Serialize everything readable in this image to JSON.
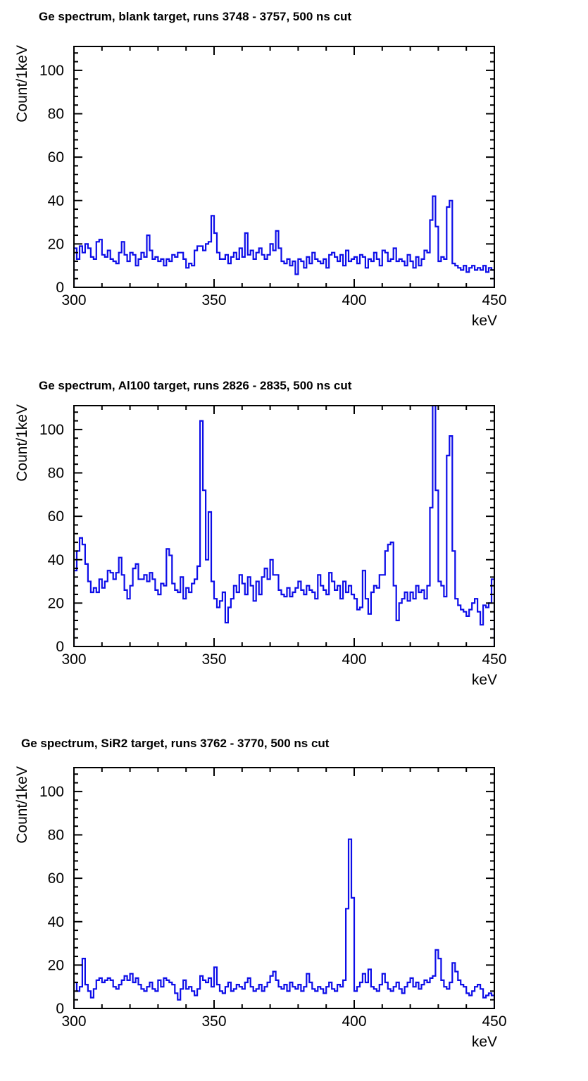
{
  "page": {
    "background": "#ffffff",
    "text_color": "#000000"
  },
  "colors": {
    "histogram_line": "#0d0de8",
    "axis": "#000000"
  },
  "chart_data": [
    {
      "type": "bar",
      "subtype": "step-histogram",
      "title": "Ge spectrum, blank target, runs 3748 - 3757, 500 ns cut",
      "xlabel": "keV",
      "ylabel": "Count/1keV",
      "x_start": 300,
      "bin_width_keV": 1,
      "xlim": [
        300,
        450
      ],
      "ylim": [
        0,
        111
      ],
      "x_major_ticks": [
        300,
        350,
        400,
        450
      ],
      "x_minor_step": 10,
      "y_major_ticks": [
        0,
        20,
        40,
        60,
        80,
        100
      ],
      "y_minor_step": 4,
      "grid": "off",
      "legend": "none",
      "values": [
        18,
        13,
        19,
        16,
        20,
        18,
        14,
        13,
        21,
        22,
        15,
        14,
        17,
        13,
        12,
        11,
        16,
        21,
        15,
        12,
        16,
        15,
        10,
        13,
        16,
        14,
        24,
        17,
        13,
        14,
        12,
        13,
        10,
        13,
        12,
        15,
        14,
        16,
        16,
        13,
        9,
        11,
        10,
        17,
        19,
        19,
        17,
        20,
        21,
        33,
        25,
        16,
        13,
        13,
        15,
        11,
        14,
        16,
        13,
        18,
        14,
        25,
        15,
        17,
        13,
        16,
        18,
        15,
        13,
        15,
        20,
        17,
        26,
        18,
        12,
        11,
        13,
        10,
        12,
        6,
        13,
        12,
        9,
        14,
        11,
        16,
        13,
        12,
        11,
        13,
        9,
        15,
        16,
        14,
        12,
        15,
        10,
        17,
        12,
        13,
        14,
        11,
        15,
        14,
        9,
        13,
        12,
        16,
        13,
        10,
        17,
        16,
        12,
        13,
        18,
        12,
        13,
        12,
        10,
        15,
        12,
        9,
        14,
        10,
        13,
        17,
        16,
        31,
        42,
        28,
        12,
        14,
        13,
        37,
        40,
        11,
        10,
        9,
        8,
        10,
        7,
        9,
        10,
        8,
        9,
        8,
        10,
        7,
        9,
        8
      ]
    },
    {
      "type": "bar",
      "subtype": "step-histogram",
      "title": "Ge spectrum, Al100 target, runs 2826 - 2835, 500 ns cut",
      "xlabel": "keV",
      "ylabel": "Count/1keV",
      "x_start": 300,
      "bin_width_keV": 1,
      "xlim": [
        300,
        450
      ],
      "ylim": [
        0,
        111
      ],
      "x_major_ticks": [
        300,
        350,
        400,
        450
      ],
      "x_minor_step": 10,
      "y_major_ticks": [
        0,
        20,
        40,
        60,
        80,
        100
      ],
      "y_minor_step": 4,
      "grid": "off",
      "legend": "none",
      "clipped_bin_keV": 428,
      "values": [
        35,
        44,
        50,
        47,
        38,
        30,
        25,
        27,
        25,
        31,
        27,
        30,
        35,
        34,
        31,
        34,
        41,
        33,
        26,
        22,
        28,
        36,
        38,
        31,
        31,
        33,
        30,
        34,
        31,
        26,
        24,
        29,
        28,
        45,
        42,
        29,
        26,
        25,
        32,
        22,
        27,
        25,
        29,
        31,
        37,
        104,
        72,
        40,
        62,
        30,
        22,
        18,
        21,
        25,
        11,
        18,
        22,
        28,
        25,
        33,
        29,
        24,
        32,
        28,
        21,
        30,
        24,
        32,
        36,
        31,
        40,
        33,
        33,
        26,
        24,
        23,
        27,
        23,
        25,
        27,
        30,
        26,
        24,
        28,
        26,
        25,
        22,
        33,
        28,
        26,
        24,
        34,
        30,
        26,
        28,
        22,
        30,
        25,
        28,
        24,
        22,
        17,
        18,
        35,
        22,
        15,
        25,
        28,
        27,
        33,
        33,
        44,
        47,
        48,
        28,
        12,
        20,
        22,
        25,
        21,
        25,
        22,
        28,
        25,
        26,
        22,
        28,
        64,
        112,
        72,
        30,
        28,
        23,
        88,
        97,
        44,
        22,
        19,
        17,
        16,
        14,
        17,
        20,
        22,
        16,
        10,
        19,
        18,
        20,
        31
      ]
    },
    {
      "type": "bar",
      "subtype": "step-histogram",
      "title": "Ge spectrum, SiR2 target, runs 3762 - 3770, 500 ns cut",
      "xlabel": "keV",
      "ylabel": "Count/1keV",
      "x_start": 300,
      "bin_width_keV": 1,
      "xlim": [
        300,
        450
      ],
      "ylim": [
        0,
        111
      ],
      "x_major_ticks": [
        300,
        350,
        400,
        450
      ],
      "x_minor_step": 10,
      "y_major_ticks": [
        0,
        20,
        40,
        60,
        80,
        100
      ],
      "y_minor_step": 4,
      "grid": "off",
      "legend": "none",
      "values": [
        12,
        8,
        10,
        23,
        11,
        8,
        5,
        9,
        13,
        14,
        12,
        13,
        14,
        13,
        10,
        9,
        11,
        13,
        15,
        13,
        16,
        12,
        14,
        11,
        9,
        8,
        10,
        12,
        9,
        8,
        13,
        10,
        14,
        13,
        12,
        11,
        7,
        4,
        9,
        13,
        9,
        10,
        8,
        6,
        9,
        15,
        13,
        12,
        14,
        10,
        19,
        11,
        8,
        7,
        10,
        12,
        8,
        9,
        11,
        10,
        9,
        12,
        14,
        10,
        8,
        9,
        11,
        8,
        10,
        12,
        15,
        17,
        13,
        10,
        9,
        11,
        8,
        12,
        10,
        9,
        11,
        8,
        10,
        16,
        12,
        9,
        8,
        10,
        9,
        7,
        10,
        12,
        9,
        8,
        11,
        10,
        13,
        46,
        78,
        51,
        8,
        10,
        12,
        16,
        12,
        18,
        10,
        9,
        8,
        11,
        16,
        12,
        9,
        8,
        10,
        12,
        9,
        7,
        10,
        12,
        14,
        10,
        12,
        9,
        11,
        13,
        12,
        14,
        15,
        27,
        23,
        13,
        10,
        9,
        12,
        21,
        17,
        13,
        11,
        10,
        7,
        6,
        8,
        10,
        11,
        9,
        5,
        6,
        7,
        6
      ]
    }
  ]
}
